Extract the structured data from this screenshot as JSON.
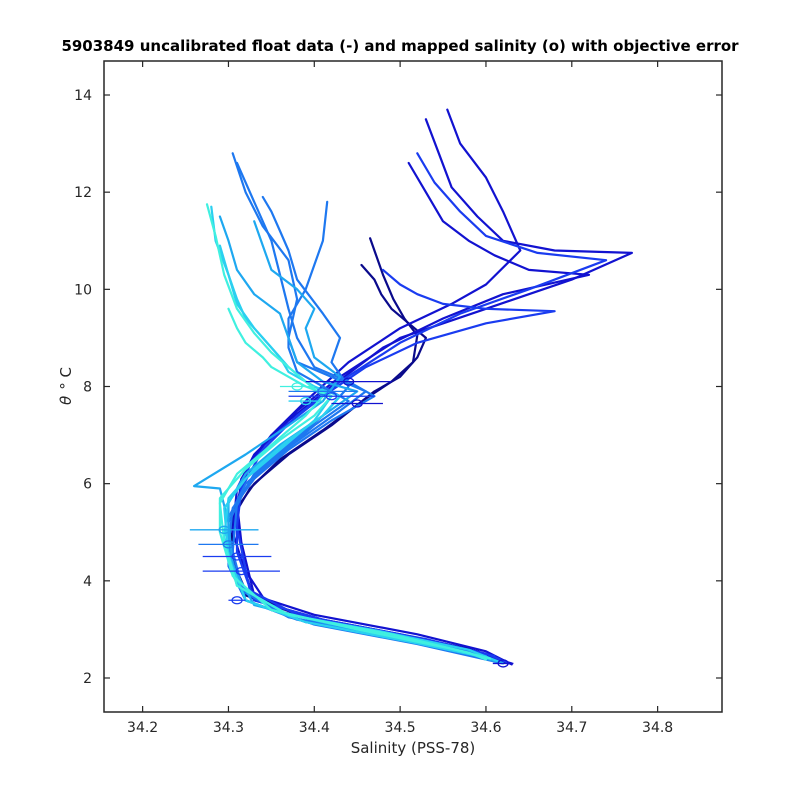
{
  "chart_data": {
    "type": "line",
    "title": "5903849 uncalibrated float data (-) and mapped salinity (o) with objective error",
    "xlabel": "Salinity (PSS-78)",
    "ylabel_symbol": "θ",
    "ylabel_unit": "° C",
    "xlim": [
      34.155,
      34.875
    ],
    "ylim": [
      1.3,
      14.7
    ],
    "xticks": [
      "34.2",
      "34.3",
      "34.4",
      "34.5",
      "34.6",
      "34.7",
      "34.8"
    ],
    "yticks": [
      "2",
      "4",
      "6",
      "8",
      "10",
      "12",
      "14"
    ],
    "grid": false,
    "colormap": [
      "#0a0a8c",
      "#1212d0",
      "#1a3cf0",
      "#1e78f0",
      "#1ea8f0",
      "#2ad0f0",
      "#40f0e0"
    ],
    "series": [
      {
        "color": "#0a0a8c",
        "x": [
          34.455,
          34.47,
          34.478,
          34.49,
          34.51,
          34.53,
          34.52,
          34.5,
          34.47,
          34.42,
          34.37,
          34.33,
          34.31,
          34.3,
          34.32,
          34.38,
          34.5,
          34.58,
          34.62
        ],
        "y": [
          10.5,
          10.2,
          9.9,
          9.6,
          9.3,
          9.0,
          8.6,
          8.2,
          7.9,
          7.2,
          6.6,
          6.0,
          5.5,
          4.6,
          3.8,
          3.3,
          2.9,
          2.6,
          2.35
        ]
      },
      {
        "color": "#0a0a8c",
        "x": [
          34.465,
          34.472,
          34.48,
          34.492,
          34.505,
          34.52,
          34.515,
          34.49,
          34.46,
          34.41,
          34.36,
          34.325,
          34.305,
          34.305,
          34.32,
          34.39,
          34.51,
          34.59,
          34.625
        ],
        "y": [
          11.05,
          10.7,
          10.3,
          9.8,
          9.4,
          9.05,
          8.5,
          8.1,
          7.75,
          7.1,
          6.5,
          5.9,
          5.3,
          4.5,
          3.7,
          3.25,
          2.85,
          2.55,
          2.3
        ]
      },
      {
        "color": "#1212d0",
        "x": [
          34.555,
          34.57,
          34.6,
          34.62,
          34.64,
          34.6,
          34.56,
          34.5,
          34.44,
          34.39,
          34.35,
          34.32,
          34.31,
          34.315,
          34.33,
          34.4,
          34.52,
          34.6,
          34.63
        ],
        "y": [
          13.7,
          13.0,
          12.3,
          11.6,
          10.8,
          10.1,
          9.7,
          9.2,
          8.5,
          7.7,
          7.0,
          6.3,
          5.6,
          4.8,
          3.7,
          3.3,
          2.9,
          2.55,
          2.28
        ]
      },
      {
        "color": "#1212d0",
        "x": [
          34.53,
          34.545,
          34.56,
          34.59,
          34.62,
          34.68,
          34.77,
          34.7,
          34.6,
          34.5,
          34.43,
          34.38,
          34.34,
          34.315,
          34.31,
          34.32,
          34.35,
          34.46,
          34.57,
          34.63
        ],
        "y": [
          13.5,
          12.8,
          12.1,
          11.5,
          11.0,
          10.8,
          10.75,
          10.2,
          9.6,
          9.0,
          8.2,
          7.5,
          6.8,
          6.1,
          5.3,
          4.2,
          3.4,
          3.0,
          2.6,
          2.3
        ]
      },
      {
        "color": "#1212d0",
        "x": [
          34.51,
          34.53,
          34.55,
          34.58,
          34.61,
          34.65,
          34.72,
          34.62,
          34.55,
          34.48,
          34.42,
          34.37,
          34.33,
          34.31,
          34.305,
          34.33,
          34.42,
          34.55,
          34.62
        ],
        "y": [
          12.6,
          12.0,
          11.4,
          11.0,
          10.7,
          10.4,
          10.3,
          9.9,
          9.4,
          8.8,
          8.0,
          7.3,
          6.6,
          5.9,
          5.0,
          3.6,
          3.15,
          2.7,
          2.35
        ]
      },
      {
        "color": "#1a3cf0",
        "x": [
          34.52,
          34.54,
          34.57,
          34.6,
          34.66,
          34.74,
          34.65,
          34.57,
          34.5,
          34.43,
          34.38,
          34.34,
          34.315,
          34.31,
          34.325,
          34.38,
          34.5,
          34.6,
          34.625
        ],
        "y": [
          12.8,
          12.2,
          11.6,
          11.1,
          10.75,
          10.6,
          10.0,
          9.5,
          8.9,
          8.1,
          7.4,
          6.7,
          5.9,
          5.1,
          3.8,
          3.3,
          2.9,
          2.5,
          2.32
        ]
      },
      {
        "color": "#1a3cf0",
        "x": [
          34.48,
          34.5,
          34.52,
          34.55,
          34.6,
          34.68,
          34.6,
          34.52,
          34.46,
          34.41,
          34.36,
          34.325,
          34.31,
          34.31,
          34.33,
          34.41,
          34.53,
          34.61
        ],
        "y": [
          10.4,
          10.1,
          9.9,
          9.7,
          9.6,
          9.55,
          9.3,
          8.9,
          8.4,
          7.8,
          7.1,
          6.4,
          5.6,
          4.6,
          3.6,
          3.2,
          2.8,
          2.45
        ]
      },
      {
        "color": "#1e78f0",
        "x": [
          34.305,
          34.32,
          34.34,
          34.37,
          34.38,
          34.37,
          34.38,
          34.42,
          34.46,
          34.43,
          34.39,
          34.35,
          34.32,
          34.3,
          34.3,
          34.32,
          34.4,
          34.52,
          34.62
        ],
        "y": [
          12.8,
          12.0,
          11.3,
          10.6,
          9.8,
          9.0,
          8.5,
          8.2,
          7.9,
          7.5,
          7.0,
          6.5,
          5.9,
          5.2,
          4.3,
          3.6,
          3.1,
          2.7,
          2.3
        ]
      },
      {
        "color": "#1e78f0",
        "x": [
          34.31,
          34.33,
          34.35,
          34.36,
          34.37,
          34.38,
          34.4,
          34.44,
          34.47,
          34.42,
          34.37,
          34.33,
          34.305,
          34.3,
          34.315,
          34.37,
          34.48,
          34.58,
          34.62
        ],
        "y": [
          12.6,
          11.8,
          11.0,
          10.3,
          9.6,
          9.0,
          8.4,
          8.1,
          7.8,
          7.3,
          6.7,
          6.1,
          5.5,
          4.7,
          3.8,
          3.25,
          2.9,
          2.55,
          2.3
        ]
      },
      {
        "color": "#1e78f0",
        "x": [
          34.34,
          34.35,
          34.36,
          34.37,
          34.38,
          34.41,
          34.43,
          34.42,
          34.44,
          34.41,
          34.37,
          34.33,
          34.31,
          34.305,
          34.32,
          34.39,
          34.51,
          34.6
        ],
        "y": [
          11.9,
          11.6,
          11.2,
          10.8,
          10.2,
          9.5,
          9.0,
          8.5,
          8.0,
          7.4,
          6.8,
          6.2,
          5.6,
          4.6,
          3.6,
          3.15,
          2.75,
          2.42
        ]
      },
      {
        "color": "#1e78f0",
        "x": [
          34.415,
          34.41,
          34.4,
          34.39,
          34.37,
          34.37,
          34.38,
          34.41,
          34.44,
          34.4,
          34.36,
          34.32,
          34.3,
          34.3,
          34.32,
          34.38,
          34.5,
          34.6
        ],
        "y": [
          11.8,
          11.0,
          10.5,
          10.0,
          9.4,
          8.8,
          8.3,
          8.0,
          7.7,
          7.2,
          6.6,
          6.0,
          5.3,
          4.4,
          3.6,
          3.2,
          2.8,
          2.45
        ]
      },
      {
        "color": "#1ea8f0",
        "x": [
          34.29,
          34.3,
          34.31,
          34.33,
          34.36,
          34.37,
          34.38,
          34.41,
          34.45,
          34.41,
          34.36,
          34.32,
          34.3,
          34.3,
          34.32,
          34.39,
          34.51,
          34.6
        ],
        "y": [
          11.5,
          11.0,
          10.4,
          9.9,
          9.5,
          9.0,
          8.5,
          8.1,
          7.9,
          7.4,
          6.8,
          6.2,
          5.6,
          4.6,
          3.6,
          3.15,
          2.75,
          2.42
        ]
      },
      {
        "color": "#1ea8f0",
        "x": [
          34.33,
          34.34,
          34.35,
          34.38,
          34.4,
          34.39,
          34.4,
          34.43,
          34.41,
          34.37,
          34.32,
          34.26,
          34.29,
          34.3,
          34.305,
          34.33,
          34.42,
          34.55,
          34.62
        ],
        "y": [
          11.4,
          10.9,
          10.4,
          10.0,
          9.6,
          9.2,
          8.6,
          8.2,
          7.7,
          7.2,
          6.6,
          5.95,
          5.9,
          5.2,
          4.3,
          3.5,
          3.1,
          2.65,
          2.3
        ]
      },
      {
        "color": "#2ad0f0",
        "x": [
          34.28,
          34.285,
          34.3,
          34.31,
          34.33,
          34.35,
          34.37,
          34.39,
          34.42,
          34.4,
          34.36,
          34.32,
          34.295,
          34.3,
          34.32,
          34.39,
          34.51,
          34.6
        ],
        "y": [
          11.7,
          11.0,
          10.3,
          9.7,
          9.2,
          8.8,
          8.4,
          8.1,
          7.8,
          7.3,
          6.7,
          6.1,
          5.5,
          4.5,
          3.6,
          3.15,
          2.75,
          2.42
        ]
      },
      {
        "color": "#2ad0f0",
        "x": [
          34.29,
          34.3,
          34.31,
          34.32,
          34.34,
          34.36,
          34.37,
          34.4,
          34.43,
          34.41,
          34.37,
          34.33,
          34.3,
          34.295,
          34.31,
          34.37,
          34.48,
          34.58,
          34.62
        ],
        "y": [
          10.9,
          10.3,
          9.8,
          9.4,
          9.0,
          8.6,
          8.3,
          8.0,
          7.8,
          7.4,
          6.9,
          6.3,
          5.7,
          4.9,
          3.9,
          3.3,
          2.95,
          2.58,
          2.3
        ]
      },
      {
        "color": "#40f0e0",
        "x": [
          34.275,
          34.285,
          34.295,
          34.31,
          34.33,
          34.35,
          34.37,
          34.39,
          34.41,
          34.39,
          34.35,
          34.31,
          34.29,
          34.295,
          34.31,
          34.37,
          34.49,
          34.58,
          34.6
        ],
        "y": [
          11.75,
          11.1,
          10.3,
          9.6,
          9.1,
          8.7,
          8.4,
          8.1,
          7.8,
          7.4,
          6.8,
          6.2,
          5.6,
          4.8,
          3.9,
          3.3,
          2.9,
          2.52,
          2.38
        ]
      },
      {
        "color": "#40f0e0",
        "x": [
          34.3,
          34.31,
          34.32,
          34.34,
          34.35,
          34.37,
          34.39,
          34.42,
          34.4,
          34.36,
          34.32,
          34.29,
          34.29,
          34.305,
          34.35,
          34.45,
          34.56,
          34.605
        ],
        "y": [
          9.6,
          9.2,
          8.9,
          8.6,
          8.4,
          8.2,
          8.0,
          7.8,
          7.4,
          6.9,
          6.3,
          5.7,
          5.0,
          4.1,
          3.4,
          3.0,
          2.6,
          2.4
        ]
      }
    ],
    "mapped_markers": [
      {
        "color": "#1212d0",
        "x": 34.62,
        "y": 2.3,
        "xerr": 0.012
      },
      {
        "color": "#1a3cf0",
        "x": 34.31,
        "y": 3.6,
        "xerr": 0.01
      },
      {
        "color": "#1a3cf0",
        "x": 34.315,
        "y": 4.2,
        "xerr": 0.045
      },
      {
        "color": "#1a3cf0",
        "x": 34.31,
        "y": 4.5,
        "xerr": 0.04
      },
      {
        "color": "#1e78f0",
        "x": 34.3,
        "y": 4.75,
        "xerr": 0.035
      },
      {
        "color": "#1ea8f0",
        "x": 34.295,
        "y": 5.05,
        "xerr": 0.04
      },
      {
        "color": "#1212d0",
        "x": 34.45,
        "y": 7.65,
        "xerr": 0.03
      },
      {
        "color": "#1a3cf0",
        "x": 34.42,
        "y": 7.8,
        "xerr": 0.05
      },
      {
        "color": "#1e78f0",
        "x": 34.41,
        "y": 7.9,
        "xerr": 0.04
      },
      {
        "color": "#1212d0",
        "x": 34.44,
        "y": 8.1,
        "xerr": 0.05
      },
      {
        "color": "#40f0e0",
        "x": 34.38,
        "y": 8.0,
        "xerr": 0.02
      },
      {
        "color": "#2ad0f0",
        "x": 34.39,
        "y": 7.7,
        "xerr": 0.02
      }
    ]
  }
}
